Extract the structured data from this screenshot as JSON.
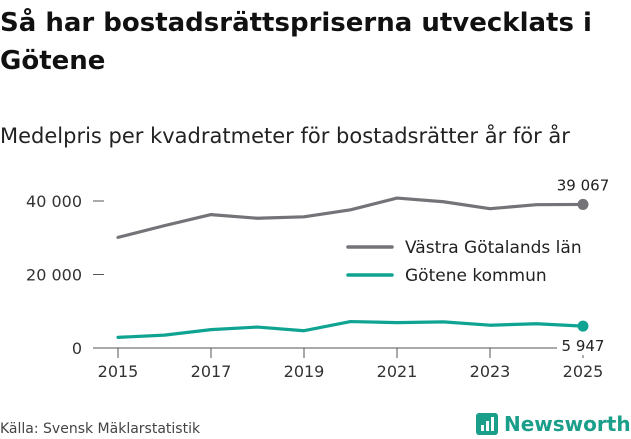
{
  "title": "Så har bostadsrättspriserna utvecklats i Götene",
  "subtitle": "Medelpris per kvadratmeter för bostadsrätter år för år",
  "source": "Källa: Svensk Mäklarstatistik",
  "logo": {
    "text": "Newsworthy",
    "icon": "bar-chart-icon"
  },
  "colors": {
    "vastra": "#737378",
    "gotene": "#0fa392"
  },
  "chart_data": {
    "type": "line",
    "title": "Så har bostadsrättspriserna utvecklats i Götene",
    "subtitle": "Medelpris per kvadratmeter för bostadsrätter år för år",
    "xlabel": "",
    "ylabel": "",
    "x": [
      2015,
      2016,
      2017,
      2018,
      2019,
      2020,
      2021,
      2022,
      2023,
      2024,
      2025
    ],
    "xticks": [
      "2015",
      "2017",
      "2019",
      "2021",
      "2023",
      "2025"
    ],
    "yticks": [
      0,
      20000,
      40000
    ],
    "ytick_labels": [
      "0",
      "20 000",
      "40 000"
    ],
    "ylim": [
      0,
      46000
    ],
    "grid": false,
    "legend_position": "right",
    "series": [
      {
        "name": "Västra Götalands län",
        "values": [
          30100,
          33300,
          36300,
          35300,
          35700,
          37600,
          40800,
          39800,
          37900,
          39000,
          39067
        ],
        "end_label": "39 067"
      },
      {
        "name": "Götene kommun",
        "values": [
          2900,
          3500,
          5000,
          5700,
          4700,
          7200,
          6900,
          7100,
          6200,
          6600,
          5947
        ],
        "end_label": "5 947"
      }
    ]
  }
}
